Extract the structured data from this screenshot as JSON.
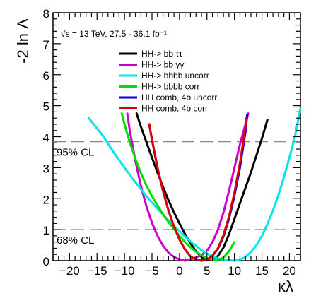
{
  "chart_data": {
    "type": "line",
    "title": "",
    "annotation": "√s = 13 TeV, 27.5 - 36.1 fb⁻¹",
    "xlabel": "κλ",
    "ylabel": "-2 ln Λ",
    "xlim": [
      -23,
      22
    ],
    "ylim": [
      0,
      8
    ],
    "x_ticks": [
      -20,
      -15,
      -10,
      -5,
      0,
      5,
      10,
      15,
      20
    ],
    "y_ticks": [
      0,
      1,
      2,
      3,
      4,
      5,
      6,
      7,
      8
    ],
    "grid": false,
    "legend_placement": "top-right",
    "reference_lines": [
      {
        "label": "95% CL",
        "y": 3.84
      },
      {
        "label": "68% CL",
        "y": 1.0
      }
    ],
    "series": [
      {
        "name": "HH-> bb ττ",
        "color": "#000000",
        "x": [
          -7.8,
          -7,
          -6,
          -5,
          -4,
          -3,
          -2,
          -1,
          0,
          1,
          2,
          3,
          4,
          5,
          6,
          7,
          8,
          9,
          10,
          11,
          12,
          13,
          14,
          15,
          16
        ],
        "y": [
          4.75,
          4.32,
          3.82,
          3.32,
          2.84,
          2.38,
          1.95,
          1.56,
          1.2,
          0.86,
          0.56,
          0.3,
          0.12,
          0.02,
          0.03,
          0.15,
          0.42,
          0.85,
          1.35,
          1.85,
          2.35,
          2.85,
          3.4,
          3.95,
          4.55
        ]
      },
      {
        "name": "HH-> bb γγ",
        "color": "#cc00cc",
        "x": [
          -9.5,
          -9,
          -8,
          -7,
          -6,
          -5,
          -4,
          -3,
          -2,
          -1,
          0,
          1,
          2,
          3,
          4,
          5,
          6,
          7,
          8,
          9,
          10,
          11,
          12,
          12.5
        ],
        "y": [
          4.75,
          4.15,
          3.2,
          2.4,
          1.75,
          1.22,
          0.8,
          0.48,
          0.26,
          0.12,
          0.04,
          0.0,
          0.04,
          0.1,
          0.18,
          0.32,
          0.6,
          1.0,
          1.55,
          2.25,
          3.0,
          3.75,
          4.4,
          4.75
        ]
      },
      {
        "name": "HH-> bbbb uncorr",
        "color": "#00e5e5",
        "x": [
          -16.5,
          -14,
          -12,
          -10,
          -8,
          -6,
          -4,
          -2,
          0,
          2,
          4,
          6,
          8,
          10,
          11,
          12,
          13,
          14,
          15,
          16,
          17,
          18,
          19,
          20,
          21,
          22
        ],
        "y": [
          4.6,
          4.05,
          3.5,
          3.0,
          2.52,
          2.08,
          1.68,
          1.3,
          0.95,
          0.62,
          0.34,
          0.13,
          0.02,
          0.0,
          0.03,
          0.12,
          0.28,
          0.5,
          0.8,
          1.18,
          1.62,
          2.12,
          2.7,
          3.32,
          4.0,
          4.9
        ]
      },
      {
        "name": "HH-> bbbb corr",
        "color": "#00dd00",
        "x": [
          -10.5,
          -10,
          -9,
          -8,
          -7,
          -6,
          -5,
          -4,
          -3,
          -2,
          -1,
          0,
          1,
          2,
          3,
          4,
          5,
          6,
          7,
          8,
          9,
          10
        ],
        "y": [
          4.75,
          4.4,
          3.8,
          3.28,
          2.82,
          2.42,
          2.08,
          1.78,
          1.5,
          1.25,
          1.02,
          0.8,
          0.6,
          0.43,
          0.29,
          0.17,
          0.08,
          0.03,
          0.02,
          0.1,
          0.3,
          0.6
        ]
      },
      {
        "name": "HH comb, 4b uncorr",
        "color": "#0000dd",
        "x": [
          -5.5,
          -5,
          -4,
          -3,
          -2,
          -1,
          0,
          1,
          2,
          3,
          4,
          5,
          6,
          7,
          8,
          9,
          10,
          11,
          12,
          12.3
        ],
        "y": [
          4.4,
          3.9,
          3.0,
          2.25,
          1.62,
          1.1,
          0.68,
          0.36,
          0.14,
          0.03,
          0.0,
          0.03,
          0.15,
          0.38,
          0.78,
          1.35,
          2.1,
          3.0,
          4.15,
          4.7
        ]
      },
      {
        "name": "HH comb, 4b corr",
        "color": "#dd0000",
        "x": [
          -5.5,
          -5,
          -4,
          -3,
          -2,
          -1,
          0,
          1,
          2,
          3,
          4,
          5,
          6,
          7,
          8,
          9,
          10,
          11,
          12,
          12.1
        ],
        "y": [
          4.4,
          3.9,
          3.0,
          2.25,
          1.62,
          1.1,
          0.68,
          0.36,
          0.14,
          0.03,
          0.0,
          0.03,
          0.16,
          0.4,
          0.82,
          1.42,
          2.2,
          3.15,
          4.3,
          4.6
        ]
      }
    ]
  }
}
